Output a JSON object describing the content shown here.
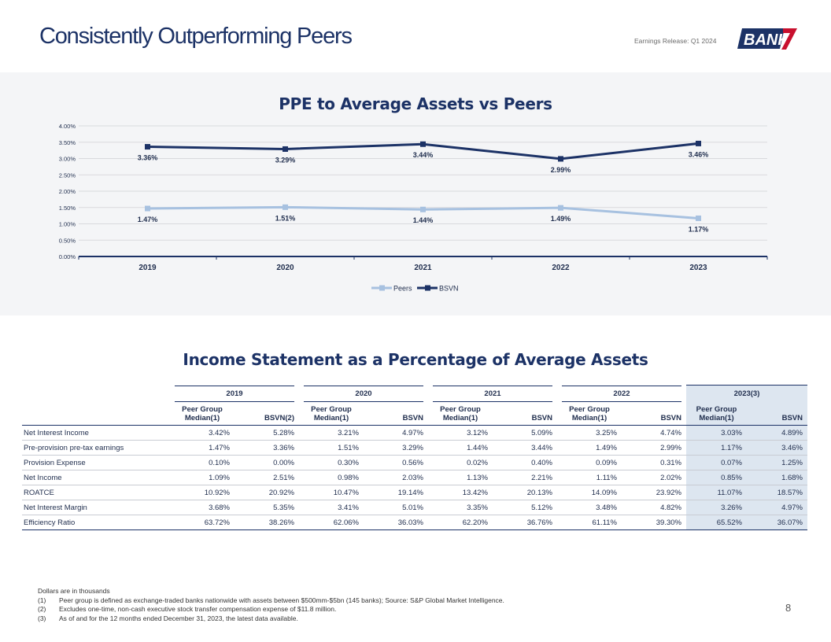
{
  "header": {
    "title": "Consistently Outperforming Peers",
    "release": "Earnings Release: Q1 2024",
    "logo_text": "BANK7",
    "colors": {
      "navy": "#1c3266",
      "red": "#c8102e"
    }
  },
  "chart": {
    "title": "PPE to Average Assets vs Peers"
  },
  "chart_data": {
    "type": "line",
    "title": "PPE to Average Assets vs Peers",
    "categories": [
      "2019",
      "2020",
      "2021",
      "2022",
      "2023"
    ],
    "y_ticks": [
      "0.00%",
      "0.50%",
      "1.00%",
      "1.50%",
      "2.00%",
      "2.50%",
      "3.00%",
      "3.50%",
      "4.00%"
    ],
    "ylim": [
      0,
      4
    ],
    "legend_position": "bottom",
    "series": [
      {
        "name": "Peers",
        "values": [
          1.47,
          1.51,
          1.44,
          1.49,
          1.17
        ],
        "labels": [
          "1.47%",
          "1.51%",
          "1.44%",
          "1.49%",
          "1.17%"
        ],
        "color": "#a7c1e0"
      },
      {
        "name": "BSVN",
        "values": [
          3.36,
          3.29,
          3.44,
          2.99,
          3.46
        ],
        "labels": [
          "3.36%",
          "3.29%",
          "3.44%",
          "2.99%",
          "3.46%"
        ],
        "color": "#1c3266"
      }
    ]
  },
  "table": {
    "title": "Income Statement as a Percentage of Average Assets",
    "years": [
      "2019",
      "2020",
      "2021",
      "2022",
      "2023(3)"
    ],
    "sub_headers": [
      [
        "Peer Group",
        "Median(1)"
      ],
      [
        "BSVN(2)"
      ],
      [
        "Peer Group",
        "Median(1)"
      ],
      [
        "BSVN"
      ],
      [
        "Peer Group",
        "Median(1)"
      ],
      [
        "BSVN"
      ],
      [
        "Peer Group",
        "Median(1)"
      ],
      [
        "BSVN"
      ],
      [
        "Peer Group",
        "Median(1)"
      ],
      [
        "BSVN"
      ]
    ],
    "rows": [
      {
        "label": "Net Interest Income",
        "values": [
          "3.42%",
          "5.28%",
          "3.21%",
          "4.97%",
          "3.12%",
          "5.09%",
          "3.25%",
          "4.74%",
          "3.03%",
          "4.89%"
        ]
      },
      {
        "label": "Pre-provision pre-tax earnings",
        "values": [
          "1.47%",
          "3.36%",
          "1.51%",
          "3.29%",
          "1.44%",
          "3.44%",
          "1.49%",
          "2.99%",
          "1.17%",
          "3.46%"
        ]
      },
      {
        "label": "Provision Expense",
        "values": [
          "0.10%",
          "0.00%",
          "0.30%",
          "0.56%",
          "0.02%",
          "0.40%",
          "0.09%",
          "0.31%",
          "0.07%",
          "1.25%"
        ]
      },
      {
        "label": "Net Income",
        "values": [
          "1.09%",
          "2.51%",
          "0.98%",
          "2.03%",
          "1.13%",
          "2.21%",
          "1.11%",
          "2.02%",
          "0.85%",
          "1.68%"
        ]
      },
      {
        "label": "ROATCE",
        "values": [
          "10.92%",
          "20.92%",
          "10.47%",
          "19.14%",
          "13.42%",
          "20.13%",
          "14.09%",
          "23.92%",
          "11.07%",
          "18.57%"
        ]
      },
      {
        "label": "Net Interest Margin",
        "values": [
          "3.68%",
          "5.35%",
          "3.41%",
          "5.01%",
          "3.35%",
          "5.12%",
          "3.48%",
          "4.82%",
          "3.26%",
          "4.97%"
        ]
      },
      {
        "label": "Efficiency Ratio",
        "values": [
          "63.72%",
          "38.26%",
          "62.06%",
          "36.03%",
          "62.20%",
          "36.76%",
          "61.11%",
          "39.30%",
          "65.52%",
          "36.07%"
        ]
      }
    ]
  },
  "footnotes": {
    "intro": "Dollars are in thousands",
    "items": [
      {
        "num": "(1)",
        "text": "Peer group is defined as exchange-traded banks nationwide with assets between $500mm-$5bn (145 banks); Source: S&P Global Market Intelligence."
      },
      {
        "num": "(2)",
        "text": "Excludes one-time, non-cash executive stock transfer compensation expense of $11.8 million."
      },
      {
        "num": "(3)",
        "text": "As of and for the 12 months ended December 31, 2023, the latest data available."
      }
    ]
  },
  "page_number": "8"
}
